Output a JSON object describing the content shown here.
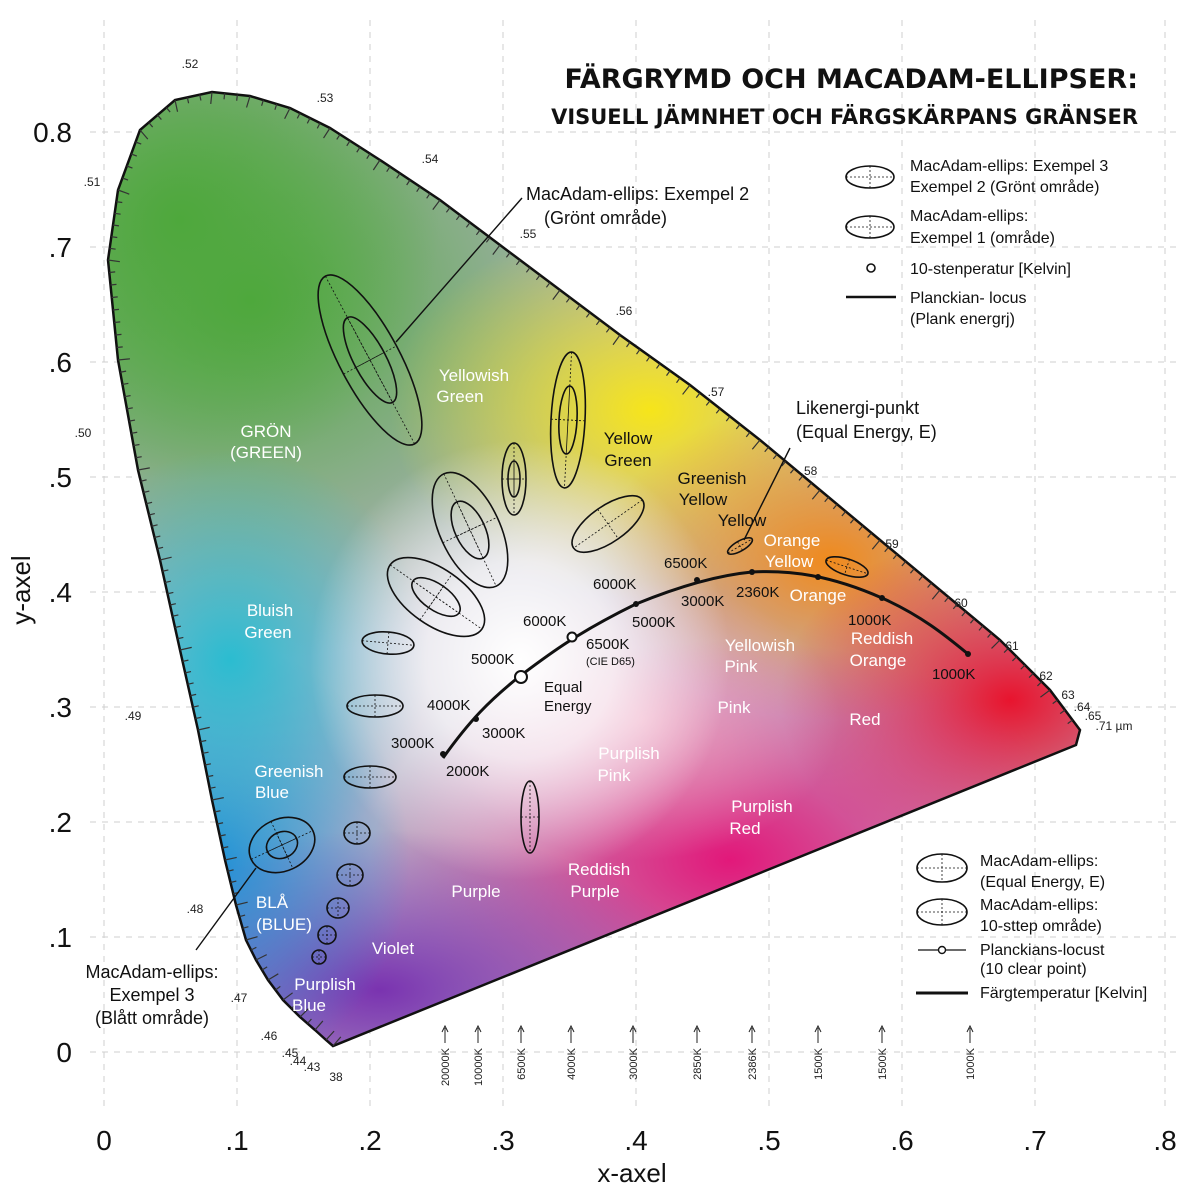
{
  "title": {
    "line1": "FÄRGRYMD OCH MACADAM-ELLIPSER:",
    "line2": "VISUELL JÄMNHET OCH FÄRGSKÄRPANS GRÄNSER"
  },
  "axes": {
    "x_label": "x-axel",
    "y_label": "y-axel",
    "x_ticks": [
      "0",
      ".1",
      ".2",
      ".3",
      ".4",
      ".5",
      ".6",
      ".7",
      ".8"
    ],
    "y_ticks": [
      "0",
      ".1",
      ".2",
      ".3",
      ".4",
      ".5",
      ".6",
      ".7",
      "0.8"
    ]
  },
  "colors": {
    "green": "#4ea83c",
    "yellow": "#f1e11c",
    "orange": "#f08a1c",
    "red": "#e8142e",
    "magenta": "#e2187a",
    "purple": "#7a33b0",
    "blue": "#1d8fd6",
    "cyan": "#2bb6d6"
  },
  "wavelength_labels": [
    {
      "text": ".52"
    },
    {
      "text": ".53"
    },
    {
      "text": ".54"
    },
    {
      "text": ".51"
    },
    {
      "text": ".55"
    },
    {
      "text": ".56"
    },
    {
      "text": ".50"
    },
    {
      "text": ".57"
    },
    {
      "text": ".58"
    },
    {
      "text": "59"
    },
    {
      "text": "60"
    },
    {
      "text": "61"
    },
    {
      "text": "62"
    },
    {
      "text": "63"
    },
    {
      "text": ".64"
    },
    {
      "text": ".65"
    },
    {
      "text": ".71 µm"
    },
    {
      "text": ".49"
    },
    {
      "text": ".48"
    },
    {
      "text": ".47"
    },
    {
      "text": ".46"
    },
    {
      "text": ".45"
    },
    {
      "text": ".44"
    },
    {
      "text": ".43"
    },
    {
      "text": "38"
    }
  ],
  "regions": {
    "gron": [
      "GRÖN",
      "(GREEN)"
    ],
    "yellowish_green": [
      "Yellowish",
      "Green"
    ],
    "yellow_green": [
      "Yellow",
      "Green"
    ],
    "greenish_yellow": [
      "Greenish",
      "Yellow"
    ],
    "yellow": [
      "Yellow"
    ],
    "orange_yellow": [
      "Orange",
      "Yellow"
    ],
    "orange": [
      "Orange"
    ],
    "reddish_orange": [
      "Reddish",
      "Orange"
    ],
    "red": [
      "Red"
    ],
    "bluish_green": [
      "Bluish",
      "Green"
    ],
    "greenish_blue": [
      "Greenish",
      "Blue"
    ],
    "bla": [
      "BLÅ",
      "(BLUE)"
    ],
    "purplish_blue": [
      "Purplish",
      "Blue"
    ],
    "violet": [
      "Violet"
    ],
    "purple": [
      "Purple"
    ],
    "reddish_purple": [
      "Reddish",
      "Purple"
    ],
    "purplish_red": [
      "Purplish",
      "Red"
    ],
    "purplish_pink": [
      "Purplish",
      "Pink"
    ],
    "pink": [
      "Pink"
    ],
    "yellowish_pink": [
      "Yellowish",
      "Pink"
    ]
  },
  "locus_labels": {
    "t2000": "2000K",
    "t3000a": "3000K",
    "t3000b": "3000K",
    "t4000": "4000K",
    "t5000a": "5000K",
    "t6000a": "6000K",
    "t6500a": "6500K",
    "cie_d65": "(CIE D65)",
    "equal_energy": [
      "Equal",
      "Energy"
    ],
    "t6000b": "6000K",
    "t5000b": "5000K",
    "t6500b": "6500K",
    "t3000c": "3000K",
    "t2360": "2360K",
    "t1000a": "1000K",
    "t1000b": "1000K"
  },
  "callouts": {
    "ex2": [
      "MacAdam-ellips: Exempel 2",
      "(Grönt område)"
    ],
    "ex3": [
      "MacAdam-ellips:",
      "Exempel 3",
      "(Blått område)"
    ],
    "ee": [
      "Likenergi-punkt",
      "(Equal Energy, E)"
    ]
  },
  "legend_top": [
    {
      "line1": "MacAdam-ellips: Exempel 3",
      "line2": "Exempel 2 (Grönt område)"
    },
    {
      "line1": "MacAdam-ellips:",
      "line2": "Exempel 1 (område)"
    },
    {
      "line1": "10-stenperatur [Kelvin]"
    },
    {
      "line1": "Planckian- locus",
      "line2": "(Plank energrj)"
    }
  ],
  "legend_bottom": [
    {
      "line1": "MacAdam-ellips:",
      "line2": "(Equal Energy, E)"
    },
    {
      "line1": "MacAdam-ellips:",
      "line2": "10-sttep område)"
    },
    {
      "line1": "Planckians-locust",
      "line2": "(10 clear point)"
    },
    {
      "line1": "Färgtemperatur [Kelvin]"
    }
  ],
  "bottom_temps": [
    "20000K",
    "10000K",
    "6500K",
    "4000K",
    "3000K",
    "2850K",
    "2386K",
    "1500K",
    "1500K",
    "1000K"
  ]
}
